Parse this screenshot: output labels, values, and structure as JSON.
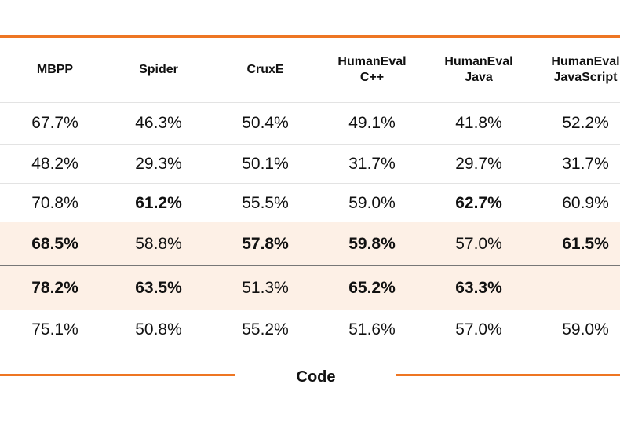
{
  "table": {
    "columns": [
      "MBPP",
      "Spider",
      "CruxE",
      "HumanEval\nC++",
      "HumanEval\nJava",
      "HumanEval\nJavaScript"
    ],
    "rows": [
      {
        "cells": [
          "67.7%",
          "46.3%",
          "50.4%",
          "49.1%",
          "41.8%",
          "52.2%"
        ],
        "bold": [
          false,
          false,
          false,
          false,
          false,
          false
        ],
        "highlight": false
      },
      {
        "cells": [
          "48.2%",
          "29.3%",
          "50.1%",
          "31.7%",
          "29.7%",
          "31.7%"
        ],
        "bold": [
          false,
          false,
          false,
          false,
          false,
          false
        ],
        "highlight": false
      },
      {
        "cells": [
          "70.8%",
          "61.2%",
          "55.5%",
          "59.0%",
          "62.7%",
          "60.9%"
        ],
        "bold": [
          false,
          true,
          false,
          false,
          true,
          false
        ],
        "highlight": false
      },
      {
        "cells": [
          "68.5%",
          "58.8%",
          "57.8%",
          "59.8%",
          "57.0%",
          "61.5%"
        ],
        "bold": [
          true,
          false,
          true,
          true,
          false,
          true
        ],
        "highlight": true
      },
      {
        "cells": [
          "78.2%",
          "63.5%",
          "51.3%",
          "65.2%",
          "63.3%",
          ""
        ],
        "bold": [
          true,
          true,
          false,
          true,
          true,
          false
        ],
        "highlight": true
      },
      {
        "cells": [
          "75.1%",
          "50.8%",
          "55.2%",
          "51.6%",
          "57.0%",
          "59.0%"
        ],
        "bold": [
          false,
          false,
          false,
          false,
          false,
          false
        ],
        "highlight": false
      }
    ]
  },
  "footer": {
    "label": "Code"
  },
  "colors": {
    "accent": "#ee7623",
    "highlight_row": "#fdf0e6",
    "text": "#111111"
  }
}
